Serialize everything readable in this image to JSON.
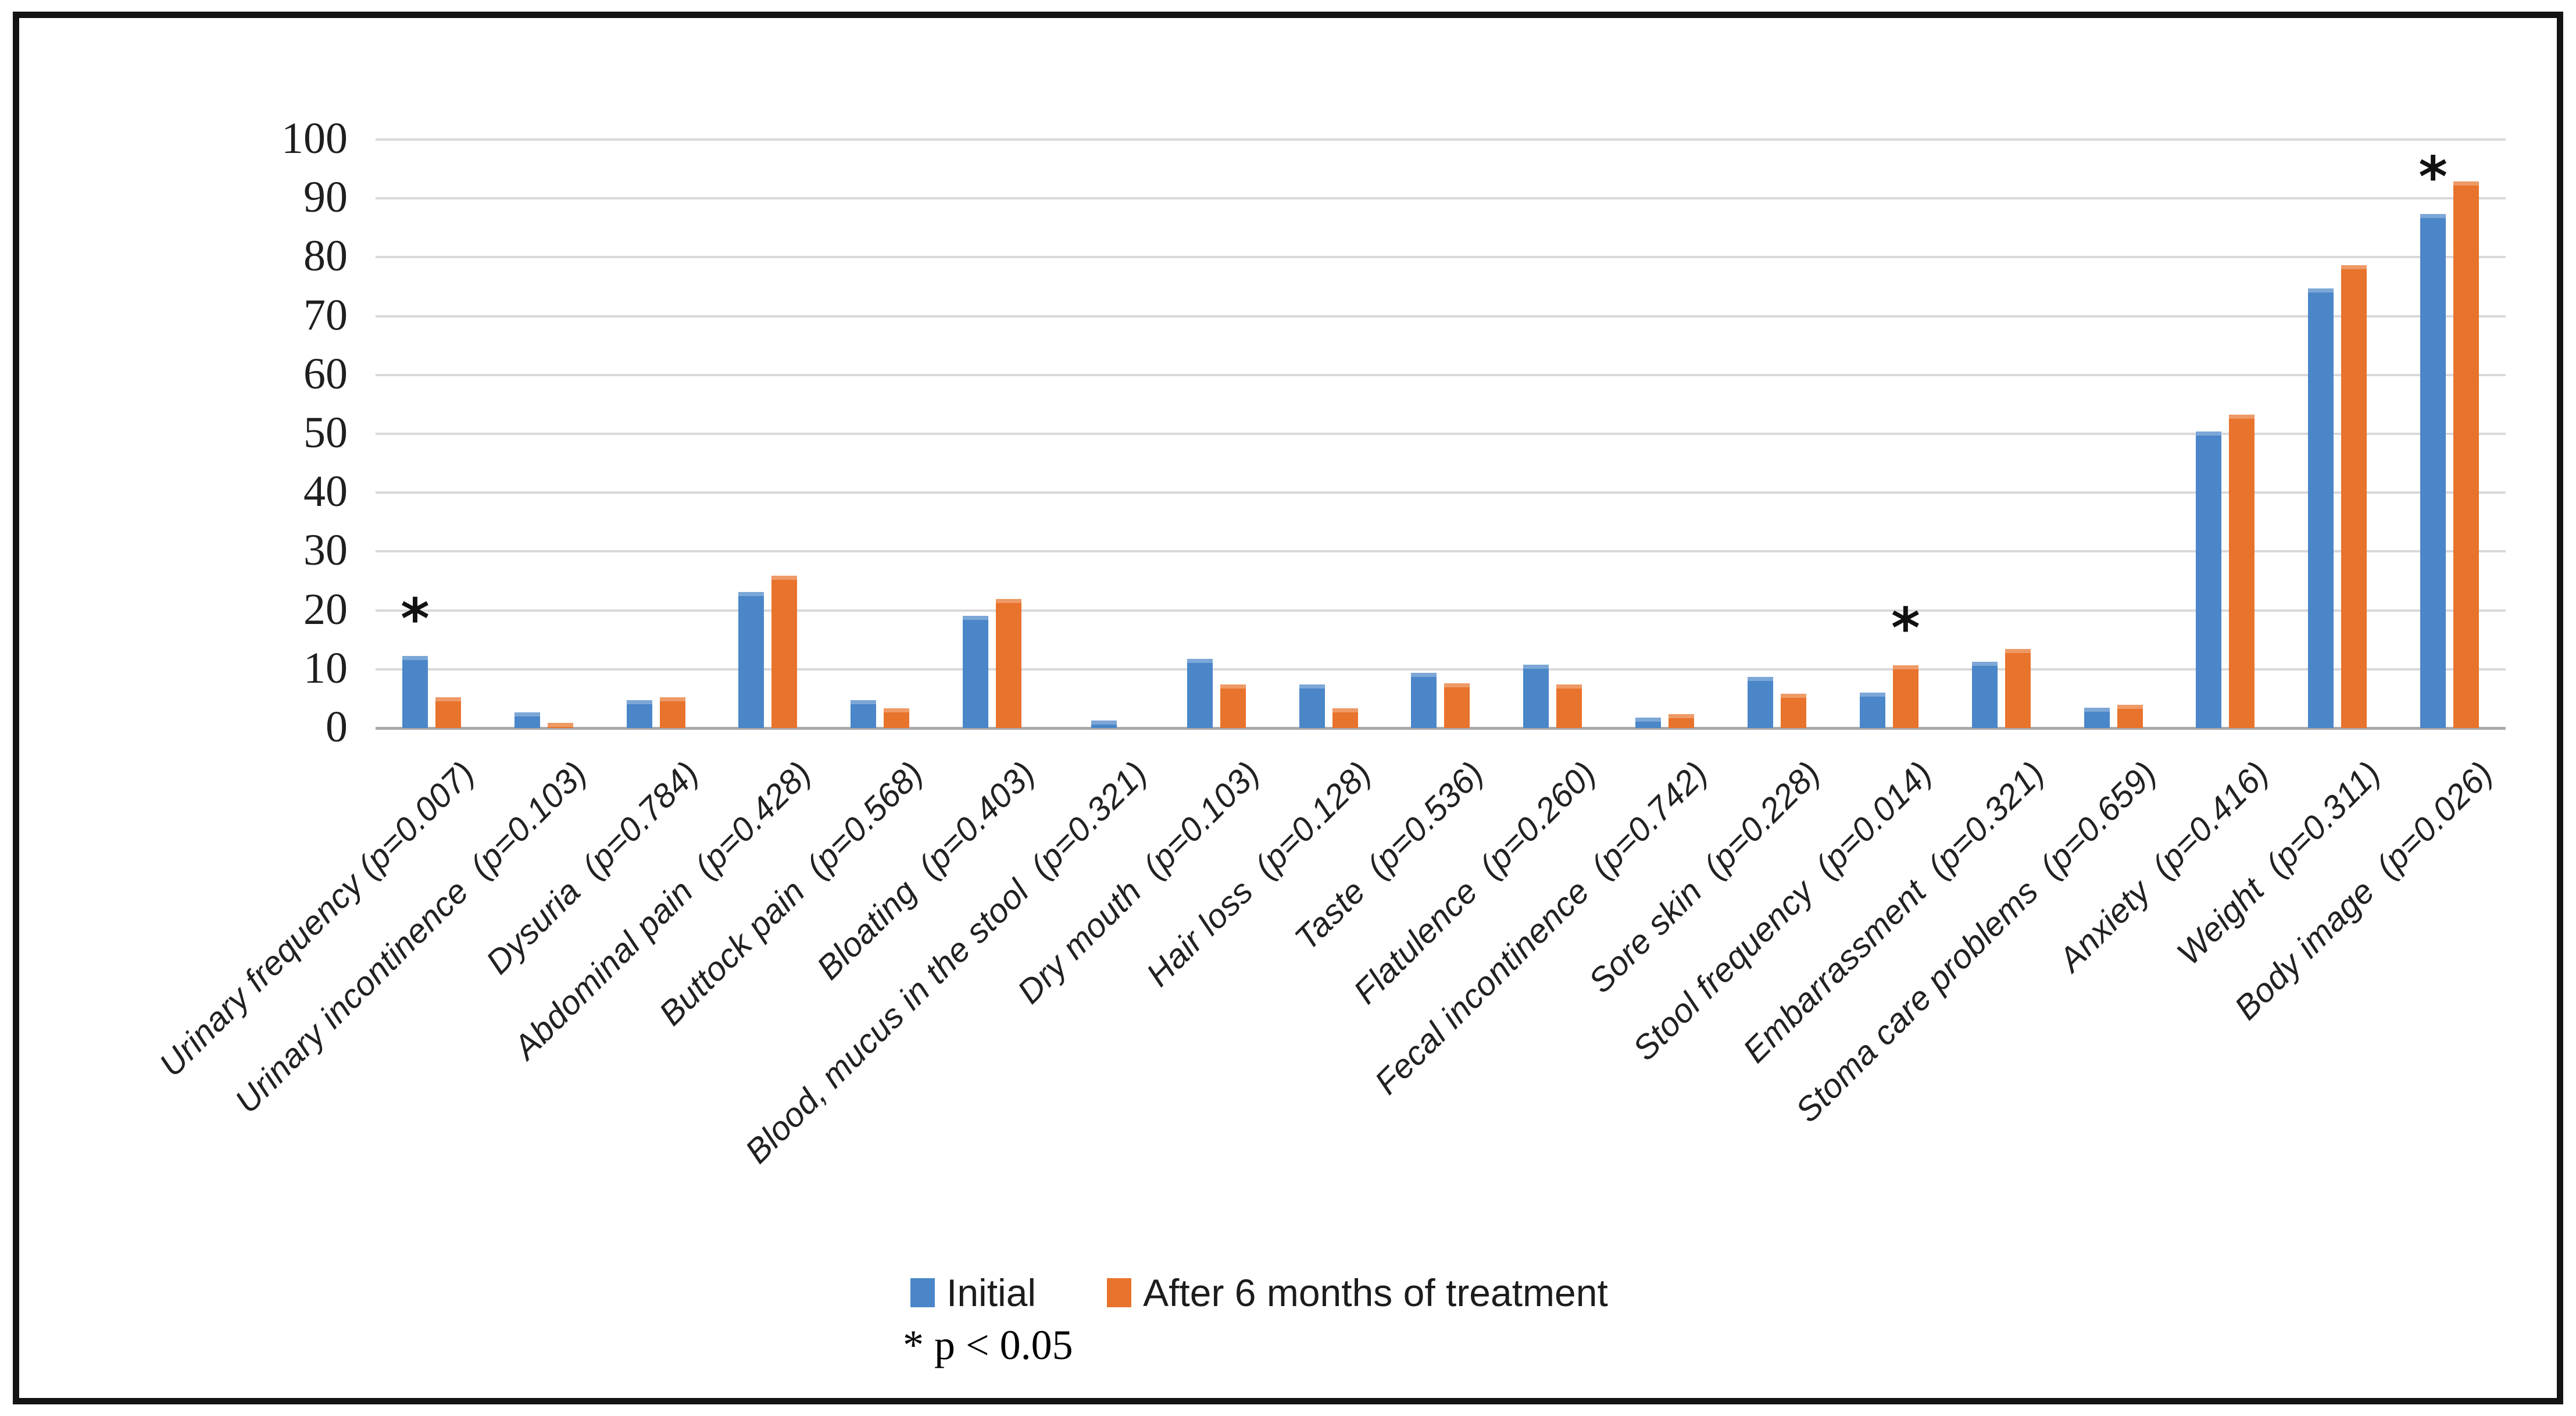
{
  "figure": {
    "background": "#ffffff",
    "border_color": "#141414"
  },
  "chart_data": {
    "type": "bar",
    "title": "",
    "xlabel": "",
    "ylabel": "",
    "ylim": [
      0,
      100
    ],
    "ytick_step": 10,
    "yticks": [
      "0",
      "10",
      "20",
      "30",
      "40",
      "50",
      "60",
      "70",
      "80",
      "90",
      "100"
    ],
    "grid": "horizontal",
    "gridline_color": "#d9d9d9",
    "axis_line_color": "#a9a9a9",
    "legend_position": "bottom",
    "categories": [
      "Urinary frequency (p=0.007)",
      "Urinary incontinence  (p=0.103)",
      "Dysuria  (p=0.784)",
      "Abdominal pain  (p=0.428)",
      "Buttock pain  (p=0.568)",
      "Bloating  (p=0.403)",
      "Blood, mucus in the stool  (p=0.321)",
      "Dry mouth  (p=0.103)",
      "Hair loss  (p=0.128)",
      "Taste  (p=0.536)",
      "Flatulence  (p=0.260)",
      "Fecal incontinence  (p=0.742)",
      "Sore skin  (p=0.228)",
      "Stool frequency  (p=0.014)",
      "Embarrassment  (p=0.321)",
      "Stoma care problems  (p=0.659)",
      "Anxiety  (p=0.416)",
      "Weight  (p=0.311)",
      "Body image  (p=0.026)"
    ],
    "series": [
      {
        "name": "Initial",
        "color": "#4a86c8",
        "values": [
          12.3,
          2.7,
          4.7,
          23.1,
          4.7,
          19.1,
          1.3,
          11.8,
          7.4,
          9.4,
          10.8,
          1.8,
          8.7,
          6.0,
          11.3,
          3.5,
          50.4,
          74.7,
          87.4
        ]
      },
      {
        "name": "After 6 months of treatment",
        "color": "#e8732c",
        "values": [
          5.2,
          0.9,
          5.2,
          25.9,
          3.4,
          21.9,
          0.0,
          7.4,
          3.4,
          7.6,
          7.4,
          2.4,
          5.8,
          10.7,
          13.4,
          4.0,
          53.3,
          78.7,
          92.9
        ]
      }
    ],
    "significance_markers": [
      {
        "category_index": 0,
        "series_index": 0,
        "marker": "*"
      },
      {
        "category_index": 13,
        "series_index": 1,
        "marker": "*"
      },
      {
        "category_index": 18,
        "series_index": 0,
        "marker": "*"
      }
    ],
    "footnote": "* p < 0.05"
  }
}
